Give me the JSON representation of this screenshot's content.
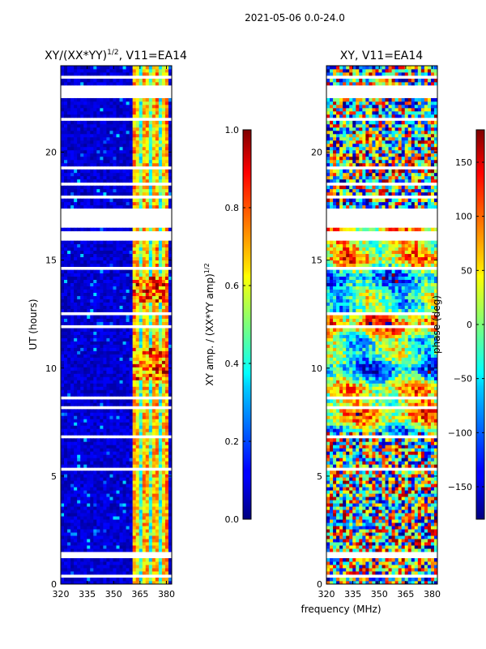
{
  "chart_data": {
    "suptitle": "2021-05-06 0.0-24.0",
    "xlabel": "frequency (MHz)",
    "panels": [
      {
        "type": "heatmap",
        "title_main": "XY/(XX*YY)",
        "title_sup": "1/2",
        "title_rest": ", V11=EA14",
        "ylabel": "UT (hours)",
        "xlim": [
          320,
          383
        ],
        "ylim": [
          0,
          24
        ],
        "xticks": [
          320,
          335,
          350,
          365,
          380
        ],
        "yticks": [
          0,
          5,
          10,
          15,
          20
        ],
        "colorbar": {
          "label_main": "XY amp. / (XX*YY amp)",
          "label_sup": "1/2",
          "range": [
            0.0,
            1.0
          ],
          "ticks": [
            "0.0",
            "0.2",
            "0.4",
            "0.6",
            "0.8",
            "1.0"
          ],
          "colormap": "jet"
        }
      },
      {
        "type": "heatmap",
        "title": "XY, V11=EA14",
        "xlim": [
          320,
          383
        ],
        "ylim": [
          0,
          24
        ],
        "xticks": [
          320,
          335,
          350,
          365,
          380
        ],
        "yticks": [
          0,
          5,
          10,
          15,
          20
        ],
        "colorbar": {
          "label": "phase (deg)",
          "range": [
            -180,
            180
          ],
          "ticks": [
            "−150",
            "−100",
            "−50",
            "0",
            "50",
            "100",
            "150"
          ],
          "colormap": "jet"
        }
      }
    ],
    "flagged_ut_hours": [
      [
        0.3,
        0.42
      ],
      [
        1.15,
        1.28
      ],
      [
        1.38,
        1.47
      ],
      [
        2.55,
        2.62
      ],
      [
        4.35,
        4.41
      ],
      [
        5.25,
        5.42
      ],
      [
        6.75,
        6.85
      ],
      [
        7.45,
        7.55
      ],
      [
        8.1,
        8.22
      ],
      [
        8.62,
        8.72
      ],
      [
        11.92,
        12.02
      ],
      [
        12.42,
        12.58
      ],
      [
        14.55,
        14.72
      ],
      [
        15.85,
        16.35
      ],
      [
        16.55,
        17.05
      ],
      [
        17.15,
        17.35
      ],
      [
        17.9,
        18.0
      ],
      [
        18.5,
        18.6
      ],
      [
        19.2,
        19.28
      ],
      [
        19.58,
        19.7
      ],
      [
        21.38,
        21.62
      ],
      [
        22.55,
        23.05
      ],
      [
        23.45,
        23.55
      ]
    ]
  }
}
